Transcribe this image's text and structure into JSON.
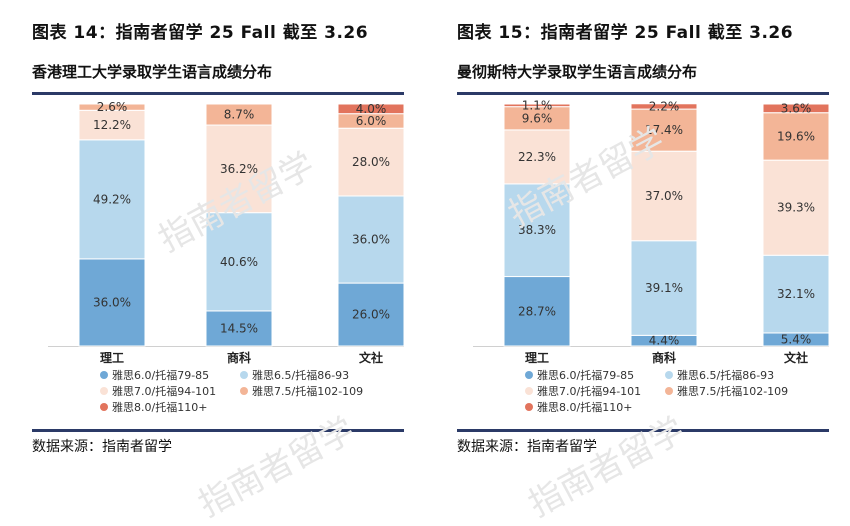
{
  "colors": {
    "band_ielts60": "#6fa8d6",
    "band_ielts65": "#b7d8ed",
    "band_ielts70": "#fae2d6",
    "band_ielts75": "#f3b597",
    "band_ielts80": "#e2745d",
    "rule": "#2b3a67"
  },
  "watermark": "指南者留学",
  "panels": [
    {
      "figure_title": "图表 14：指南者留学 25 Fall 截至 3.26",
      "chart_title": "香港理工大学录取学生语言成绩分布",
      "source": "数据来源：指南者留学"
    },
    {
      "figure_title": "图表 15：指南者留学 25 Fall 截至 3.26",
      "chart_title": "曼彻斯特大学录取学生语言成绩分布",
      "source": "数据来源：指南者留学"
    }
  ],
  "chart_data": [
    {
      "type": "bar",
      "stacked": true,
      "categories": [
        "理工",
        "商科",
        "文社"
      ],
      "ylim": [
        0,
        100
      ],
      "legend_position": "bottom",
      "series": [
        {
          "name": "雅思6.0/托福79-85",
          "color": "#6fa8d6",
          "values": [
            36.0,
            14.5,
            26.0
          ],
          "labels": [
            "36.0%",
            "14.5%",
            "26.0%"
          ]
        },
        {
          "name": "雅思6.5/托福86-93",
          "color": "#b7d8ed",
          "values": [
            49.2,
            40.6,
            36.0
          ],
          "labels": [
            "49.2%",
            "40.6%",
            "36.0%"
          ]
        },
        {
          "name": "雅思7.0/托福94-101",
          "color": "#fae2d6",
          "values": [
            12.2,
            36.2,
            28.0
          ],
          "labels": [
            "12.2%",
            "36.2%",
            "28.0%"
          ]
        },
        {
          "name": "雅思7.5/托福102-109",
          "color": "#f3b597",
          "values": [
            2.6,
            8.7,
            6.0
          ],
          "labels": [
            "2.6%",
            "8.7%",
            "6.0%"
          ]
        },
        {
          "name": "雅思8.0/托福110+",
          "color": "#e2745d",
          "values": [
            0,
            0,
            4.0
          ],
          "labels": [
            "",
            "",
            "4.0%"
          ]
        }
      ]
    },
    {
      "type": "bar",
      "stacked": true,
      "categories": [
        "理工",
        "商科",
        "文社"
      ],
      "ylim": [
        0,
        100
      ],
      "legend_position": "bottom",
      "series": [
        {
          "name": "雅思6.0/托福79-85",
          "color": "#6fa8d6",
          "values": [
            28.7,
            4.4,
            5.4
          ],
          "labels": [
            "28.7%",
            "4.4%",
            "5.4%"
          ]
        },
        {
          "name": "雅思6.5/托福86-93",
          "color": "#b7d8ed",
          "values": [
            38.3,
            39.1,
            32.1
          ],
          "labels": [
            "38.3%",
            "39.1%",
            "32.1%"
          ]
        },
        {
          "name": "雅思7.0/托福94-101",
          "color": "#fae2d6",
          "values": [
            22.3,
            37.0,
            39.3
          ],
          "labels": [
            "22.3%",
            "37.0%",
            "39.3%"
          ]
        },
        {
          "name": "雅思7.5/托福102-109",
          "color": "#f3b597",
          "values": [
            9.6,
            17.4,
            19.6
          ],
          "labels": [
            "9.6%",
            "17.4%",
            "19.6%"
          ]
        },
        {
          "name": "雅思8.0/托福110+",
          "color": "#e2745d",
          "values": [
            1.1,
            2.2,
            3.6
          ],
          "labels": [
            "1.1%",
            "2.2%",
            "3.6%"
          ]
        }
      ]
    }
  ]
}
